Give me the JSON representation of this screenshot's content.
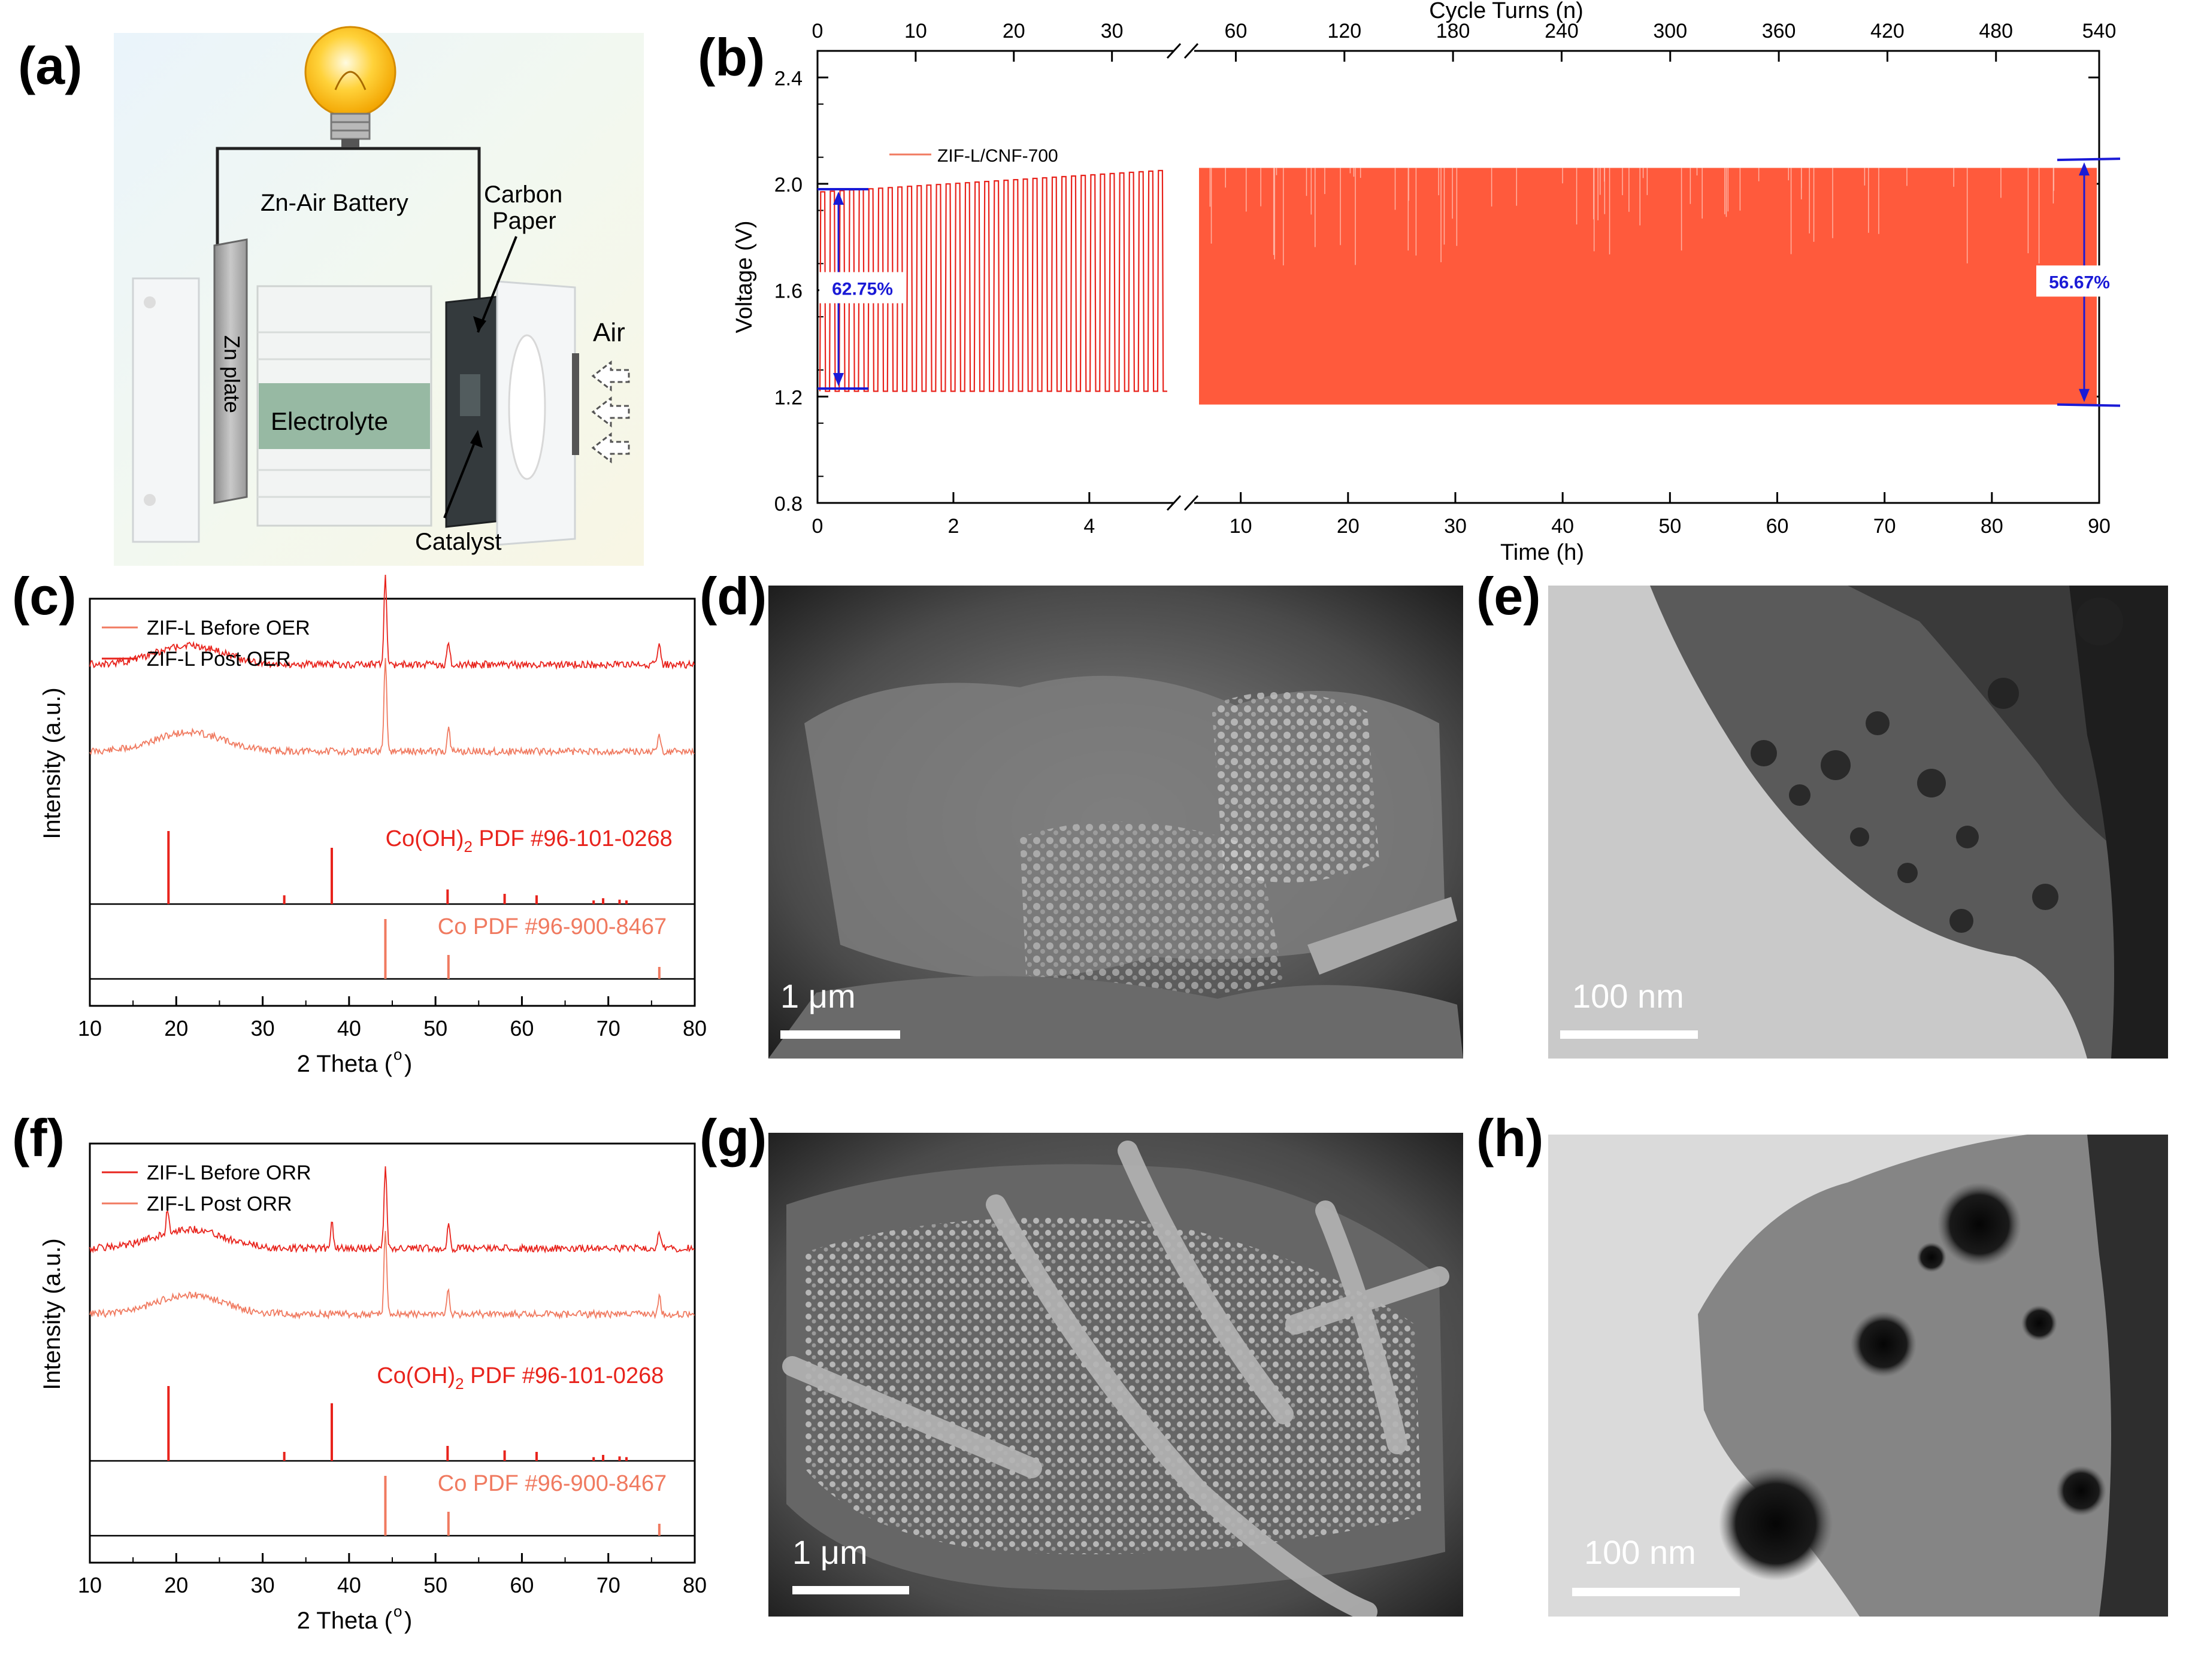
{
  "colors": {
    "red": "#e8231c",
    "salmon": "#f07a60",
    "orange_fill": "#ff5a3c",
    "blue": "#1a1ad6",
    "black": "#000000"
  },
  "panels": {
    "a": {
      "label": "(a)",
      "battery_label": "Zn-Air Battery",
      "carbon_label": "Carbon\nPaper",
      "carbon_line1": "Carbon",
      "carbon_line2": "Paper",
      "zn_label": "Zn plate",
      "electrolyte_label": "Electrolyte",
      "catalyst_label": "Catalyst",
      "air_label": "Air",
      "icons": [
        "light-bulb-icon",
        "air-arrow-icon"
      ]
    },
    "b": {
      "label": "(b)"
    },
    "c": {
      "label": "(c)"
    },
    "d": {
      "label": "(d)",
      "scale_label": "1 μm"
    },
    "e": {
      "label": "(e)",
      "scale_label": "100 nm"
    },
    "f": {
      "label": "(f)"
    },
    "g": {
      "label": "(g)",
      "scale_label": "1 μm"
    },
    "h": {
      "label": "(h)",
      "scale_label": "100 nm"
    }
  },
  "chart_data": [
    {
      "id": "b",
      "type": "line",
      "series": [
        {
          "name": "ZIF-L/CNF-700",
          "color": "#f07a60"
        }
      ],
      "xlabel": "Time (h)",
      "x2label": "Cycle Turns (n)",
      "ylabel": "Voltage (V)",
      "ylim": [
        0.8,
        2.5
      ],
      "yticks": [
        "0.8",
        "1.2",
        "1.6",
        "2.0",
        "2.4"
      ],
      "segment1": {
        "xlim": [
          0,
          5.2
        ],
        "xticks": [
          "0",
          "2",
          "4"
        ],
        "x2ticks": [
          "0",
          "10",
          "20",
          "30"
        ],
        "cycles": 36,
        "charge_start": 1.97,
        "charge_end": 2.05,
        "discharge": 1.22
      },
      "segment2": {
        "xlim": [
          6,
          90
        ],
        "xticks": [
          "10",
          "20",
          "30",
          "40",
          "50",
          "60",
          "70",
          "80",
          "90"
        ],
        "x2ticks": [
          "60",
          "120",
          "180",
          "240",
          "300",
          "360",
          "420",
          "480",
          "540"
        ],
        "charge": 2.06,
        "discharge": 1.17
      },
      "annotations": [
        {
          "text": "62.75%",
          "top": 1.98,
          "bottom": 1.23
        },
        {
          "text": "56.67%",
          "top": 2.09,
          "bottom": 1.17
        }
      ]
    },
    {
      "id": "c",
      "type": "line",
      "xlabel": "2 Theta (°)",
      "ylabel": "Intensity (a.u.)",
      "xlim": [
        10,
        80
      ],
      "xticks": [
        "10",
        "20",
        "30",
        "40",
        "50",
        "60",
        "70",
        "80"
      ],
      "series": [
        {
          "name": "ZIF-L Before OER",
          "color": "#f07a60"
        },
        {
          "name": "ZIF-L Post OER",
          "color": "#e8231c"
        }
      ],
      "peaks": [
        44.2,
        51.5,
        75.9
      ],
      "reference_1": {
        "label_pre": "Co(OH)",
        "label_sub": "2",
        "label_post": " PDF #96-101-0268",
        "color": "#e8231c",
        "lines": [
          [
            19.1,
            1.0
          ],
          [
            32.5,
            0.12
          ],
          [
            38.0,
            0.77
          ],
          [
            51.4,
            0.2
          ],
          [
            58.0,
            0.14
          ],
          [
            61.7,
            0.12
          ],
          [
            68.3,
            0.05
          ],
          [
            69.4,
            0.08
          ],
          [
            71.3,
            0.06
          ],
          [
            72.1,
            0.05
          ]
        ]
      },
      "reference_2": {
        "label": "Co PDF #96-900-8467",
        "color": "#f07a60",
        "lines": [
          [
            44.2,
            1.0
          ],
          [
            51.5,
            0.4
          ],
          [
            75.9,
            0.2
          ]
        ]
      }
    },
    {
      "id": "f",
      "type": "line",
      "xlabel": "2 Theta (°)",
      "ylabel": "Intensity (a.u.)",
      "xlim": [
        10,
        80
      ],
      "xticks": [
        "10",
        "20",
        "30",
        "40",
        "50",
        "60",
        "70",
        "80"
      ],
      "series": [
        {
          "name": "ZIF-L Before ORR",
          "color": "#e8231c"
        },
        {
          "name": "ZIF-L Post ORR",
          "color": "#f07a60"
        }
      ],
      "peaks": [
        19.0,
        38.0,
        44.2,
        51.5,
        75.9
      ],
      "reference_1": {
        "label_pre": "Co(OH)",
        "label_sub": "2",
        "label_post": " PDF #96-101-0268",
        "color": "#e8231c",
        "lines": [
          [
            19.1,
            1.0
          ],
          [
            32.5,
            0.12
          ],
          [
            38.0,
            0.77
          ],
          [
            51.4,
            0.2
          ],
          [
            58.0,
            0.14
          ],
          [
            61.7,
            0.12
          ],
          [
            68.3,
            0.05
          ],
          [
            69.4,
            0.08
          ],
          [
            71.3,
            0.06
          ],
          [
            72.1,
            0.05
          ]
        ]
      },
      "reference_2": {
        "label": "Co PDF #96-900-8467",
        "color": "#f07a60",
        "lines": [
          [
            44.2,
            1.0
          ],
          [
            51.5,
            0.4
          ],
          [
            75.9,
            0.2
          ]
        ]
      }
    }
  ]
}
